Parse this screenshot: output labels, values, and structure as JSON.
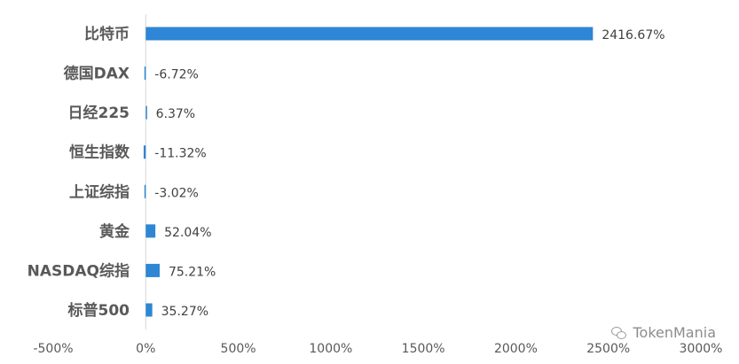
{
  "chart_data": {
    "type": "bar",
    "orientation": "horizontal",
    "categories": [
      "比特币",
      "德国DAX",
      "日经225",
      "恒生指数",
      "上证综指",
      "黄金",
      "NASDAQ综指",
      "标普500"
    ],
    "values": [
      2416.67,
      -6.72,
      6.37,
      -11.32,
      -3.02,
      52.04,
      75.21,
      35.27
    ],
    "data_labels": [
      "2416.67%",
      "-6.72%",
      "6.37%",
      "-11.32%",
      "-3.02%",
      "52.04%",
      "75.21%",
      "35.27%"
    ],
    "xlim": [
      -500,
      3000
    ],
    "x_ticks": [
      -500,
      0,
      500,
      1000,
      1500,
      2000,
      2500,
      3000
    ],
    "x_tick_labels": [
      "-500%",
      "0%",
      "500%",
      "1000%",
      "1500%",
      "2000%",
      "2500%",
      "3000%"
    ],
    "title": "",
    "xlabel": "",
    "ylabel": "",
    "grid": false,
    "legend": "none",
    "bar_color": "#2E86D4"
  },
  "watermark": {
    "text": "TokenMania",
    "icon": "wechat-icon"
  }
}
